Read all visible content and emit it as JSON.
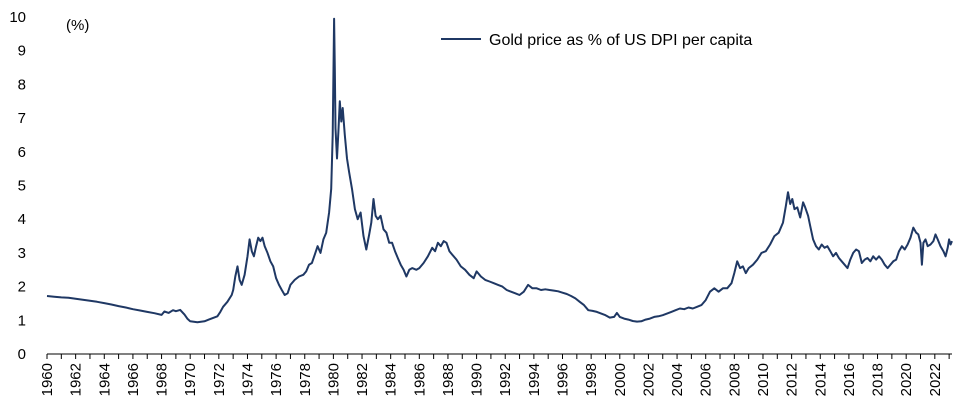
{
  "chart_data": {
    "type": "line",
    "title": "",
    "xlabel": "",
    "ylabel": "(%)",
    "xlim": [
      1960,
      2023.2
    ],
    "ylim": [
      0,
      10
    ],
    "grid": false,
    "legend_position": "top-center",
    "y_ticks": [
      "0",
      "1",
      "2",
      "3",
      "4",
      "5",
      "6",
      "7",
      "8",
      "9",
      "10"
    ],
    "x_ticks": [
      "1960",
      "1962",
      "1964",
      "1966",
      "1968",
      "1970",
      "1972",
      "1974",
      "1976",
      "1978",
      "1980",
      "1982",
      "1984",
      "1986",
      "1988",
      "1990",
      "1992",
      "1994",
      "1996",
      "1998",
      "2000",
      "2002",
      "2004",
      "2006",
      "2008",
      "2010",
      "2012",
      "2014",
      "2016",
      "2018",
      "2020",
      "2022"
    ],
    "series": [
      {
        "name": "Gold price as % of US DPI per capita",
        "color": "#1f3864",
        "points": [
          [
            1960.0,
            1.72
          ],
          [
            1960.5,
            1.7
          ],
          [
            1961.0,
            1.68
          ],
          [
            1961.5,
            1.67
          ],
          [
            1962.0,
            1.64
          ],
          [
            1962.5,
            1.61
          ],
          [
            1963.0,
            1.58
          ],
          [
            1963.5,
            1.55
          ],
          [
            1964.0,
            1.51
          ],
          [
            1964.5,
            1.47
          ],
          [
            1965.0,
            1.42
          ],
          [
            1965.5,
            1.38
          ],
          [
            1966.0,
            1.33
          ],
          [
            1966.5,
            1.29
          ],
          [
            1967.0,
            1.25
          ],
          [
            1967.5,
            1.21
          ],
          [
            1968.0,
            1.16
          ],
          [
            1968.2,
            1.26
          ],
          [
            1968.5,
            1.22
          ],
          [
            1968.8,
            1.3
          ],
          [
            1969.0,
            1.27
          ],
          [
            1969.3,
            1.31
          ],
          [
            1969.6,
            1.17
          ],
          [
            1969.8,
            1.05
          ],
          [
            1970.0,
            0.97
          ],
          [
            1970.5,
            0.94
          ],
          [
            1971.0,
            0.97
          ],
          [
            1971.3,
            1.02
          ],
          [
            1971.6,
            1.07
          ],
          [
            1971.9,
            1.12
          ],
          [
            1972.1,
            1.25
          ],
          [
            1972.3,
            1.4
          ],
          [
            1972.6,
            1.55
          ],
          [
            1972.9,
            1.75
          ],
          [
            1973.0,
            1.9
          ],
          [
            1973.15,
            2.3
          ],
          [
            1973.3,
            2.6
          ],
          [
            1973.45,
            2.2
          ],
          [
            1973.6,
            2.05
          ],
          [
            1973.8,
            2.35
          ],
          [
            1974.0,
            2.9
          ],
          [
            1974.15,
            3.4
          ],
          [
            1974.3,
            3.05
          ],
          [
            1974.45,
            2.9
          ],
          [
            1974.6,
            3.2
          ],
          [
            1974.75,
            3.45
          ],
          [
            1974.9,
            3.35
          ],
          [
            1975.05,
            3.45
          ],
          [
            1975.2,
            3.2
          ],
          [
            1975.4,
            3.0
          ],
          [
            1975.6,
            2.75
          ],
          [
            1975.8,
            2.6
          ],
          [
            1976.0,
            2.25
          ],
          [
            1976.2,
            2.05
          ],
          [
            1976.4,
            1.9
          ],
          [
            1976.6,
            1.75
          ],
          [
            1976.8,
            1.8
          ],
          [
            1977.0,
            2.05
          ],
          [
            1977.3,
            2.2
          ],
          [
            1977.6,
            2.3
          ],
          [
            1977.9,
            2.35
          ],
          [
            1978.1,
            2.45
          ],
          [
            1978.3,
            2.65
          ],
          [
            1978.5,
            2.7
          ],
          [
            1978.7,
            2.95
          ],
          [
            1978.9,
            3.2
          ],
          [
            1979.1,
            3.0
          ],
          [
            1979.3,
            3.4
          ],
          [
            1979.5,
            3.6
          ],
          [
            1979.7,
            4.2
          ],
          [
            1979.85,
            4.9
          ],
          [
            1979.95,
            6.5
          ],
          [
            1980.05,
            9.95
          ],
          [
            1980.1,
            8.5
          ],
          [
            1980.15,
            6.7
          ],
          [
            1980.25,
            5.8
          ],
          [
            1980.35,
            6.6
          ],
          [
            1980.45,
            7.5
          ],
          [
            1980.55,
            6.9
          ],
          [
            1980.65,
            7.3
          ],
          [
            1980.8,
            6.5
          ],
          [
            1980.95,
            5.8
          ],
          [
            1981.1,
            5.4
          ],
          [
            1981.3,
            4.9
          ],
          [
            1981.5,
            4.3
          ],
          [
            1981.7,
            4.0
          ],
          [
            1981.9,
            4.2
          ],
          [
            1982.1,
            3.5
          ],
          [
            1982.3,
            3.1
          ],
          [
            1982.5,
            3.55
          ],
          [
            1982.65,
            3.9
          ],
          [
            1982.8,
            4.6
          ],
          [
            1982.95,
            4.1
          ],
          [
            1983.1,
            4.0
          ],
          [
            1983.3,
            4.1
          ],
          [
            1983.5,
            3.7
          ],
          [
            1983.7,
            3.6
          ],
          [
            1983.9,
            3.3
          ],
          [
            1984.1,
            3.3
          ],
          [
            1984.3,
            3.05
          ],
          [
            1984.5,
            2.85
          ],
          [
            1984.7,
            2.65
          ],
          [
            1984.9,
            2.5
          ],
          [
            1985.1,
            2.3
          ],
          [
            1985.3,
            2.5
          ],
          [
            1985.5,
            2.55
          ],
          [
            1985.8,
            2.5
          ],
          [
            1986.0,
            2.55
          ],
          [
            1986.3,
            2.7
          ],
          [
            1986.6,
            2.9
          ],
          [
            1986.9,
            3.15
          ],
          [
            1987.1,
            3.05
          ],
          [
            1987.3,
            3.3
          ],
          [
            1987.5,
            3.2
          ],
          [
            1987.7,
            3.35
          ],
          [
            1987.9,
            3.3
          ],
          [
            1988.1,
            3.05
          ],
          [
            1988.3,
            2.95
          ],
          [
            1988.6,
            2.8
          ],
          [
            1988.9,
            2.6
          ],
          [
            1989.2,
            2.5
          ],
          [
            1989.5,
            2.35
          ],
          [
            1989.8,
            2.25
          ],
          [
            1990.0,
            2.45
          ],
          [
            1990.3,
            2.3
          ],
          [
            1990.6,
            2.2
          ],
          [
            1990.9,
            2.15
          ],
          [
            1991.2,
            2.1
          ],
          [
            1991.5,
            2.05
          ],
          [
            1991.8,
            2.0
          ],
          [
            1992.1,
            1.9
          ],
          [
            1992.4,
            1.85
          ],
          [
            1992.7,
            1.8
          ],
          [
            1993.0,
            1.75
          ],
          [
            1993.3,
            1.85
          ],
          [
            1993.6,
            2.05
          ],
          [
            1993.9,
            1.95
          ],
          [
            1994.2,
            1.95
          ],
          [
            1994.5,
            1.9
          ],
          [
            1994.8,
            1.92
          ],
          [
            1995.1,
            1.9
          ],
          [
            1995.4,
            1.88
          ],
          [
            1995.7,
            1.86
          ],
          [
            1996.0,
            1.82
          ],
          [
            1996.3,
            1.78
          ],
          [
            1996.6,
            1.72
          ],
          [
            1996.9,
            1.65
          ],
          [
            1997.2,
            1.55
          ],
          [
            1997.5,
            1.45
          ],
          [
            1997.8,
            1.3
          ],
          [
            1998.1,
            1.28
          ],
          [
            1998.4,
            1.25
          ],
          [
            1998.7,
            1.2
          ],
          [
            1999.0,
            1.15
          ],
          [
            1999.3,
            1.08
          ],
          [
            1999.6,
            1.1
          ],
          [
            1999.8,
            1.22
          ],
          [
            2000.0,
            1.1
          ],
          [
            2000.3,
            1.05
          ],
          [
            2000.6,
            1.02
          ],
          [
            2000.9,
            0.98
          ],
          [
            2001.2,
            0.96
          ],
          [
            2001.5,
            0.97
          ],
          [
            2001.8,
            1.02
          ],
          [
            2002.1,
            1.05
          ],
          [
            2002.4,
            1.1
          ],
          [
            2002.7,
            1.12
          ],
          [
            2003.0,
            1.15
          ],
          [
            2003.3,
            1.2
          ],
          [
            2003.6,
            1.25
          ],
          [
            2003.9,
            1.3
          ],
          [
            2004.2,
            1.35
          ],
          [
            2004.5,
            1.33
          ],
          [
            2004.8,
            1.38
          ],
          [
            2005.1,
            1.35
          ],
          [
            2005.4,
            1.4
          ],
          [
            2005.7,
            1.45
          ],
          [
            2006.0,
            1.6
          ],
          [
            2006.3,
            1.85
          ],
          [
            2006.6,
            1.95
          ],
          [
            2006.9,
            1.85
          ],
          [
            2007.2,
            1.95
          ],
          [
            2007.5,
            1.95
          ],
          [
            2007.8,
            2.1
          ],
          [
            2008.0,
            2.4
          ],
          [
            2008.2,
            2.75
          ],
          [
            2008.4,
            2.55
          ],
          [
            2008.6,
            2.6
          ],
          [
            2008.8,
            2.4
          ],
          [
            2009.0,
            2.55
          ],
          [
            2009.3,
            2.65
          ],
          [
            2009.6,
            2.8
          ],
          [
            2009.9,
            3.0
          ],
          [
            2010.2,
            3.05
          ],
          [
            2010.5,
            3.25
          ],
          [
            2010.8,
            3.5
          ],
          [
            2011.1,
            3.6
          ],
          [
            2011.4,
            3.9
          ],
          [
            2011.6,
            4.4
          ],
          [
            2011.75,
            4.8
          ],
          [
            2011.9,
            4.45
          ],
          [
            2012.05,
            4.6
          ],
          [
            2012.2,
            4.3
          ],
          [
            2012.4,
            4.35
          ],
          [
            2012.6,
            4.05
          ],
          [
            2012.8,
            4.5
          ],
          [
            2012.95,
            4.35
          ],
          [
            2013.15,
            4.1
          ],
          [
            2013.3,
            3.8
          ],
          [
            2013.5,
            3.4
          ],
          [
            2013.7,
            3.2
          ],
          [
            2013.9,
            3.1
          ],
          [
            2014.1,
            3.25
          ],
          [
            2014.3,
            3.15
          ],
          [
            2014.5,
            3.2
          ],
          [
            2014.7,
            3.05
          ],
          [
            2014.9,
            2.9
          ],
          [
            2015.1,
            3.0
          ],
          [
            2015.3,
            2.85
          ],
          [
            2015.5,
            2.75
          ],
          [
            2015.7,
            2.65
          ],
          [
            2015.9,
            2.55
          ],
          [
            2016.1,
            2.8
          ],
          [
            2016.3,
            3.0
          ],
          [
            2016.5,
            3.1
          ],
          [
            2016.7,
            3.05
          ],
          [
            2016.9,
            2.7
          ],
          [
            2017.1,
            2.8
          ],
          [
            2017.3,
            2.85
          ],
          [
            2017.5,
            2.75
          ],
          [
            2017.7,
            2.9
          ],
          [
            2017.9,
            2.8
          ],
          [
            2018.1,
            2.9
          ],
          [
            2018.3,
            2.8
          ],
          [
            2018.5,
            2.65
          ],
          [
            2018.7,
            2.55
          ],
          [
            2018.9,
            2.65
          ],
          [
            2019.1,
            2.75
          ],
          [
            2019.3,
            2.8
          ],
          [
            2019.5,
            3.05
          ],
          [
            2019.7,
            3.2
          ],
          [
            2019.9,
            3.1
          ],
          [
            2020.1,
            3.25
          ],
          [
            2020.3,
            3.45
          ],
          [
            2020.5,
            3.75
          ],
          [
            2020.7,
            3.6
          ],
          [
            2020.85,
            3.55
          ],
          [
            2021.0,
            3.3
          ],
          [
            2021.1,
            2.65
          ],
          [
            2021.2,
            3.3
          ],
          [
            2021.35,
            3.4
          ],
          [
            2021.5,
            3.2
          ],
          [
            2021.7,
            3.25
          ],
          [
            2021.9,
            3.35
          ],
          [
            2022.05,
            3.55
          ],
          [
            2022.2,
            3.4
          ],
          [
            2022.4,
            3.2
          ],
          [
            2022.6,
            3.05
          ],
          [
            2022.75,
            2.9
          ],
          [
            2022.9,
            3.15
          ],
          [
            2023.0,
            3.4
          ],
          [
            2023.1,
            3.25
          ],
          [
            2023.2,
            3.35
          ]
        ]
      }
    ]
  }
}
